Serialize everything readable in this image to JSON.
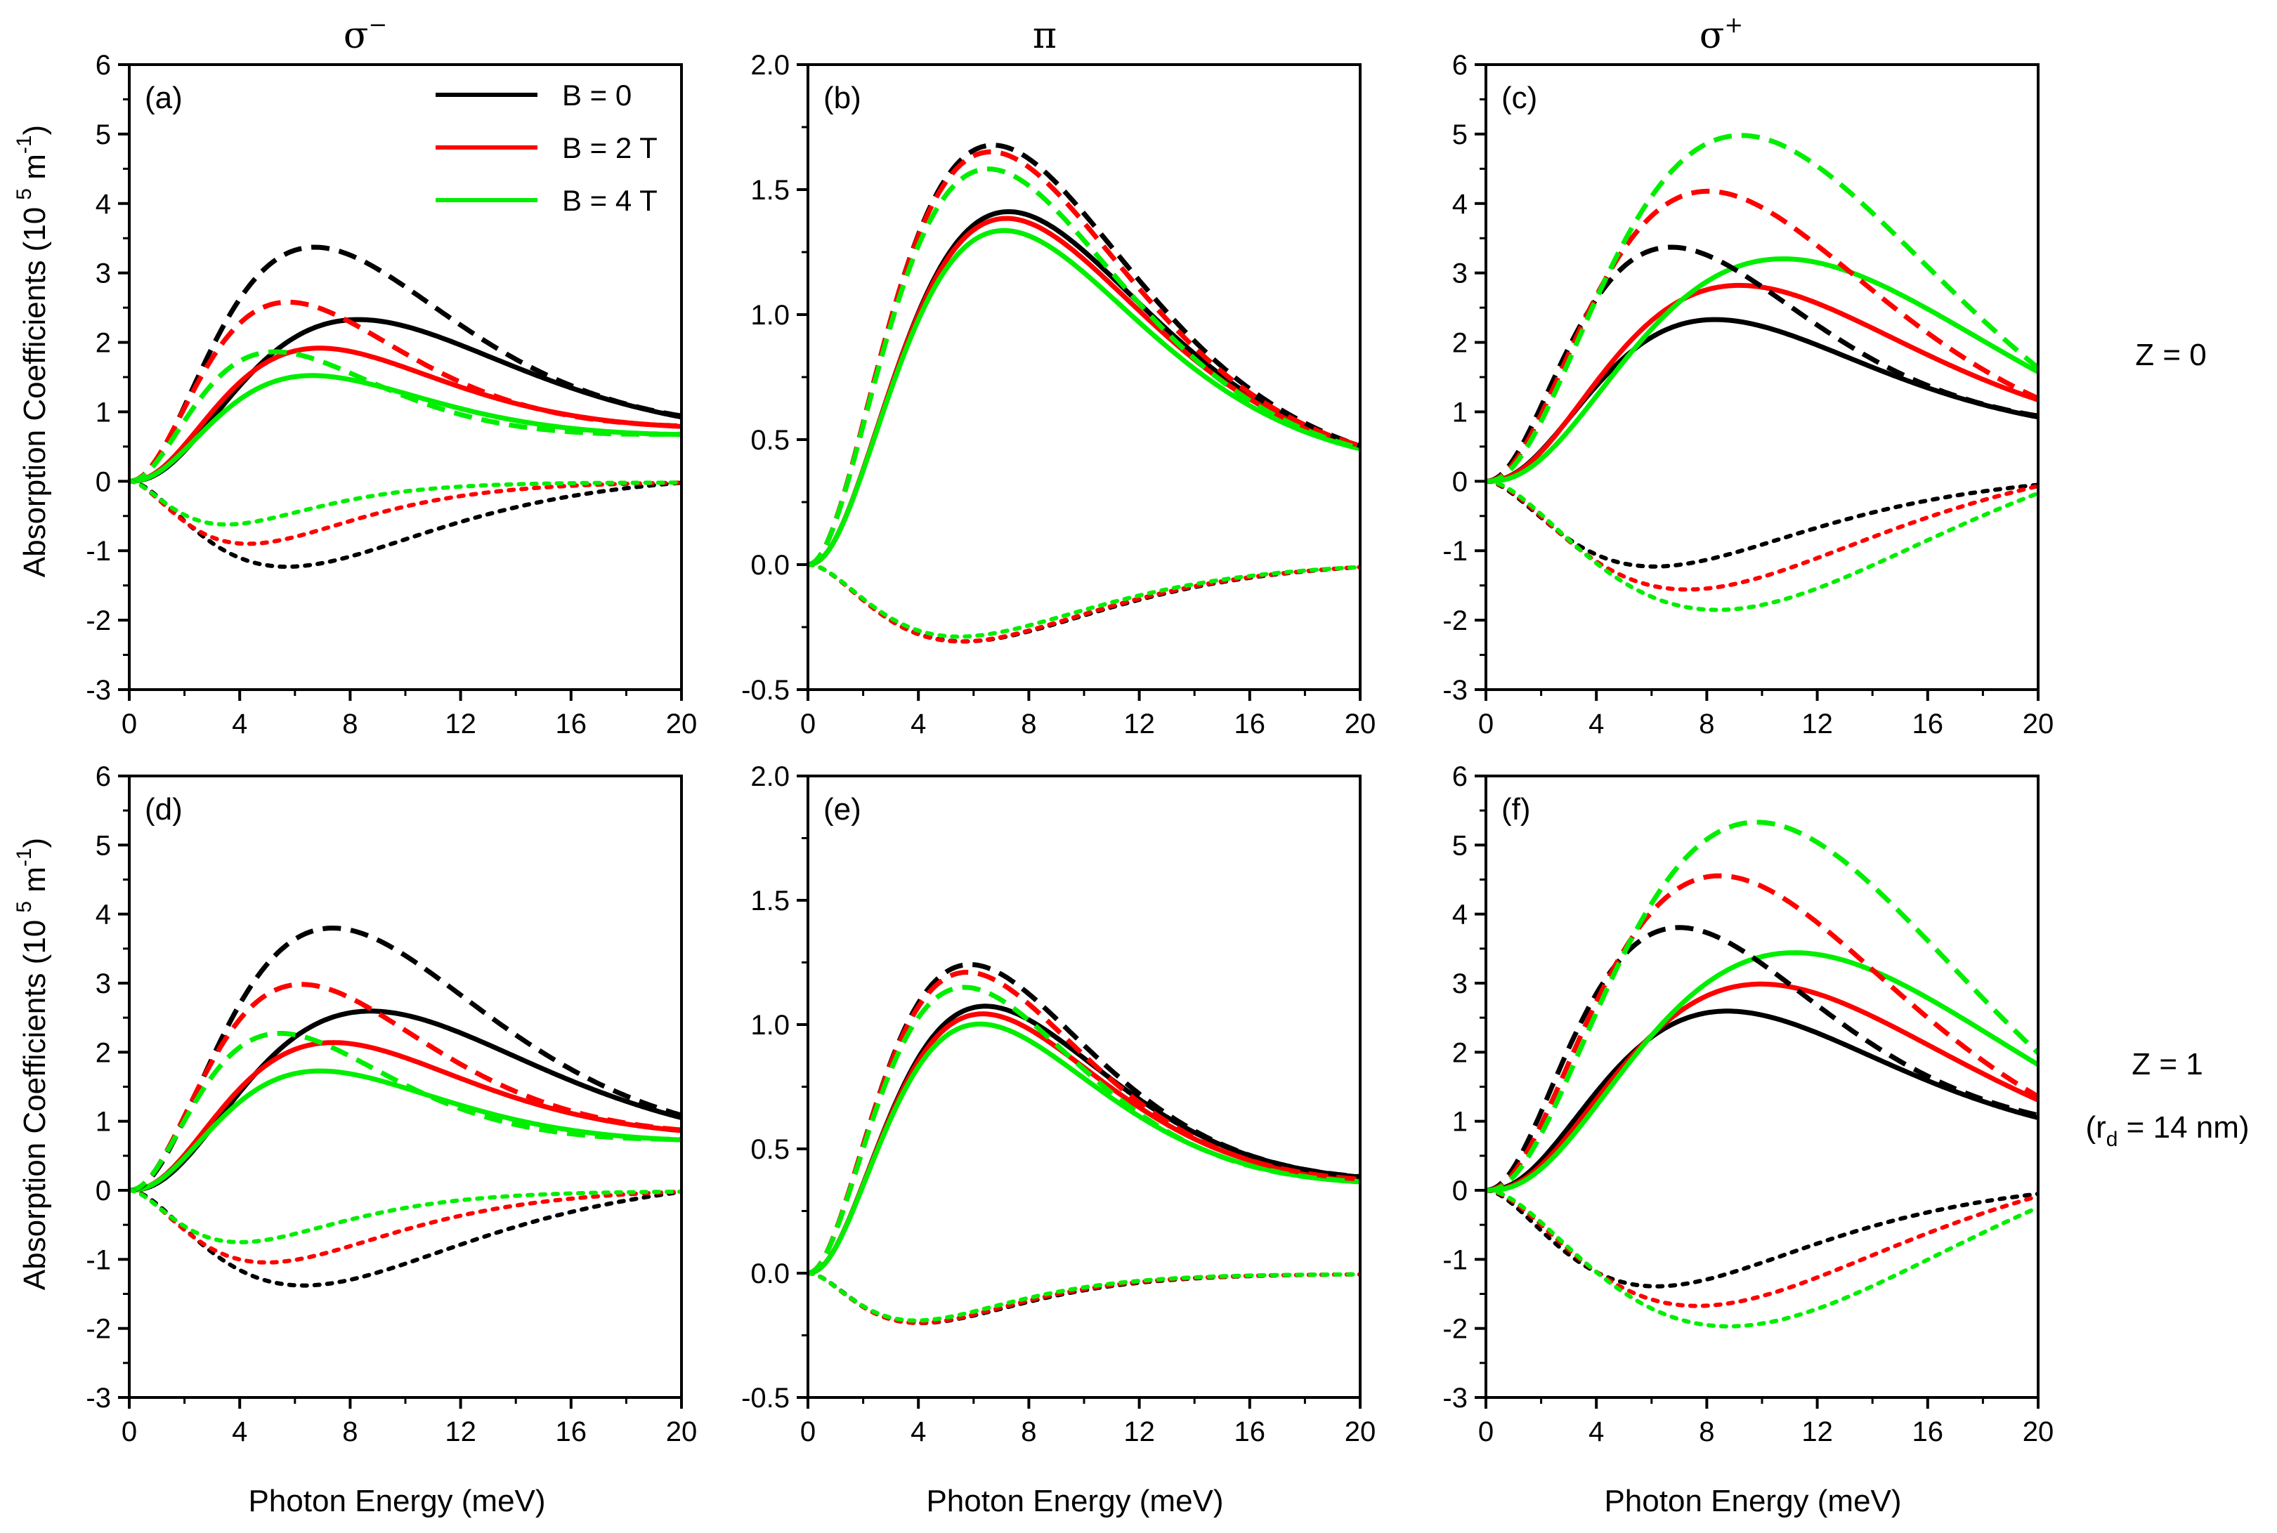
{
  "figure": {
    "column_titles": [
      "σ",
      "π",
      "σ"
    ],
    "column_title_sup": [
      "−",
      "",
      "+"
    ],
    "x_label": "Photon Energy (meV)",
    "y_label_main": "Absorption Coefficients (10",
    "y_label_sup1": "5",
    "y_label_unit": " m",
    "y_label_sup2": "-1",
    "y_label_end": ")",
    "row_labels": [
      {
        "lines": [
          "Z = 0"
        ]
      },
      {
        "lines": [
          "Z = 1",
          "(r",
          "d",
          " = 14 nm)"
        ]
      }
    ],
    "legend": [
      {
        "label": "B = 0",
        "color": "#000000"
      },
      {
        "label": "B = 2 T",
        "color": "#ff0000"
      },
      {
        "label": "B = 4 T",
        "color": "#00ee00"
      }
    ]
  },
  "chart_data": [
    {
      "type": "line",
      "panel": "(a)",
      "xlim": [
        0,
        20
      ],
      "ylim": [
        -3,
        6
      ],
      "xticks": [
        "0",
        "4",
        "8",
        "12",
        "16",
        "20"
      ],
      "yticks": [
        "-3",
        "-2",
        "-1",
        "0",
        "1",
        "2",
        "3",
        "4",
        "5",
        "6"
      ],
      "series": [
        {
          "name": "B = 0 solid",
          "color": "#000000",
          "style": "solid",
          "pe": 8.0,
          "peak": 2.22,
          "end": 0.95,
          "w": 2.6
        },
        {
          "name": "B = 2 T solid",
          "color": "#ff0000",
          "style": "solid",
          "pe": 6.5,
          "peak": 1.78,
          "end": 0.8,
          "w": 2.6
        },
        {
          "name": "B = 4 T solid",
          "color": "#00ee00",
          "style": "solid",
          "pe": 6.2,
          "peak": 1.4,
          "end": 0.68,
          "w": 2.6
        },
        {
          "name": "B = 0 dashed",
          "color": "#000000",
          "style": "dashed",
          "pe": 6.5,
          "peak": 3.25,
          "end": 0.95,
          "w": 2.3
        },
        {
          "name": "B = 2 T dashed",
          "color": "#ff0000",
          "style": "dashed",
          "pe": 5.5,
          "peak": 2.45,
          "end": 0.8,
          "w": 2.3
        },
        {
          "name": "B = 4 T dashed",
          "color": "#00ee00",
          "style": "dashed",
          "pe": 5.0,
          "peak": 1.75,
          "end": 0.68,
          "w": 2.3
        },
        {
          "name": "B = 0 dotted",
          "color": "#000000",
          "style": "dotted",
          "pe": 5.8,
          "peak": -1.25,
          "end": -0.02,
          "w": 1.9
        },
        {
          "name": "B = 2 T dotted",
          "color": "#ff0000",
          "style": "dotted",
          "pe": 4.3,
          "peak": -0.9,
          "end": -0.02,
          "w": 1.9
        },
        {
          "name": "B = 4 T dotted",
          "color": "#00ee00",
          "style": "dotted",
          "pe": 3.5,
          "peak": -0.62,
          "end": -0.02,
          "w": 1.9
        }
      ]
    },
    {
      "type": "line",
      "panel": "(b)",
      "xlim": [
        0,
        20
      ],
      "ylim": [
        -0.5,
        2.0
      ],
      "xticks": [
        "0",
        "4",
        "8",
        "12",
        "16",
        "20"
      ],
      "yticks": [
        "-0.5",
        "0.0",
        "0.5",
        "1.0",
        "1.5",
        "2.0"
      ],
      "series": [
        {
          "name": "B = 0 solid",
          "color": "#000000",
          "style": "solid",
          "pe": 7.0,
          "peak": 1.35,
          "end": 0.48,
          "w": 2.4
        },
        {
          "name": "B = 2 T solid",
          "color": "#ff0000",
          "style": "solid",
          "pe": 6.9,
          "peak": 1.32,
          "end": 0.48,
          "w": 2.4
        },
        {
          "name": "B = 4 T solid",
          "color": "#00ee00",
          "style": "solid",
          "pe": 6.8,
          "peak": 1.27,
          "end": 0.47,
          "w": 2.4
        },
        {
          "name": "B = 0 dashed",
          "color": "#000000",
          "style": "dashed",
          "pe": 6.5,
          "peak": 1.62,
          "end": 0.48,
          "w": 2.2
        },
        {
          "name": "B = 2 T dashed",
          "color": "#ff0000",
          "style": "dashed",
          "pe": 6.4,
          "peak": 1.59,
          "end": 0.48,
          "w": 2.2
        },
        {
          "name": "B = 4 T dashed",
          "color": "#00ee00",
          "style": "dashed",
          "pe": 6.3,
          "peak": 1.52,
          "end": 0.47,
          "w": 2.2
        },
        {
          "name": "B = 0 dotted",
          "color": "#000000",
          "style": "dotted",
          "pe": 5.7,
          "peak": -0.31,
          "end": -0.01,
          "w": 2.0
        },
        {
          "name": "B = 2 T dotted",
          "color": "#ff0000",
          "style": "dotted",
          "pe": 5.6,
          "peak": -0.31,
          "end": -0.01,
          "w": 2.0
        },
        {
          "name": "B = 4 T dotted",
          "color": "#00ee00",
          "style": "dotted",
          "pe": 5.5,
          "peak": -0.29,
          "end": -0.01,
          "w": 2.0
        }
      ]
    },
    {
      "type": "line",
      "panel": "(c)",
      "xlim": [
        0,
        20
      ],
      "ylim": [
        -3,
        6
      ],
      "xticks": [
        "0",
        "4",
        "8",
        "12",
        "16",
        "20"
      ],
      "yticks": [
        "-3",
        "-2",
        "-1",
        "0",
        "1",
        "2",
        "3",
        "4",
        "5",
        "6"
      ],
      "series": [
        {
          "name": "B = 0 solid",
          "color": "#000000",
          "style": "solid",
          "pe": 8.0,
          "peak": 2.22,
          "end": 0.95,
          "w": 2.6
        },
        {
          "name": "B = 2 T solid",
          "color": "#ff0000",
          "style": "solid",
          "pe": 9.0,
          "peak": 2.75,
          "end": 1.2,
          "w": 2.6
        },
        {
          "name": "B = 4 T solid",
          "color": "#00ee00",
          "style": "solid",
          "pe": 11.0,
          "peak": 3.3,
          "end": 1.5,
          "w": 2.6
        },
        {
          "name": "B = 0 dashed",
          "color": "#000000",
          "style": "dashed",
          "pe": 6.5,
          "peak": 3.25,
          "end": 0.95,
          "w": 2.3
        },
        {
          "name": "B = 2 T dashed",
          "color": "#ff0000",
          "style": "dashed",
          "pe": 8.0,
          "peak": 4.15,
          "end": 1.2,
          "w": 2.3
        },
        {
          "name": "B = 4 T dashed",
          "color": "#00ee00",
          "style": "dashed",
          "pe": 9.5,
          "peak": 5.15,
          "end": 1.55,
          "w": 2.3
        },
        {
          "name": "B = 0 dotted",
          "color": "#000000",
          "style": "dotted",
          "pe": 6.2,
          "peak": -1.25,
          "end": -0.05,
          "w": 1.9
        },
        {
          "name": "B = 2 T dotted",
          "color": "#ff0000",
          "style": "dotted",
          "pe": 7.7,
          "peak": -1.65,
          "end": -0.05,
          "w": 1.9
        },
        {
          "name": "B = 4 T dotted",
          "color": "#00ee00",
          "style": "dotted",
          "pe": 9.2,
          "peak": -2.05,
          "end": -0.08,
          "w": 1.9
        }
      ]
    },
    {
      "type": "line",
      "panel": "(d)",
      "xlim": [
        0,
        20
      ],
      "ylim": [
        -3,
        6
      ],
      "xticks": [
        "0",
        "4",
        "8",
        "12",
        "16",
        "20"
      ],
      "yticks": [
        "-3",
        "-2",
        "-1",
        "0",
        "1",
        "2",
        "3",
        "4",
        "5",
        "6"
      ],
      "series": [
        {
          "name": "B = 0 solid",
          "color": "#000000",
          "style": "solid",
          "pe": 8.5,
          "peak": 2.5,
          "end": 1.08,
          "w": 2.6
        },
        {
          "name": "B = 2 T solid",
          "color": "#ff0000",
          "style": "solid",
          "pe": 7.0,
          "peak": 2.0,
          "end": 0.88,
          "w": 2.6
        },
        {
          "name": "B = 4 T solid",
          "color": "#00ee00",
          "style": "solid",
          "pe": 6.5,
          "peak": 1.6,
          "end": 0.74,
          "w": 2.6
        },
        {
          "name": "B = 0 dashed",
          "color": "#000000",
          "style": "dashed",
          "pe": 7.2,
          "peak": 3.7,
          "end": 1.1,
          "w": 2.3
        },
        {
          "name": "B = 2 T dashed",
          "color": "#ff0000",
          "style": "dashed",
          "pe": 6.0,
          "peak": 2.85,
          "end": 0.88,
          "w": 2.3
        },
        {
          "name": "B = 4 T dashed",
          "color": "#00ee00",
          "style": "dashed",
          "pe": 5.2,
          "peak": 2.15,
          "end": 0.74,
          "w": 2.3
        },
        {
          "name": "B = 0 dotted",
          "color": "#000000",
          "style": "dotted",
          "pe": 6.5,
          "peak": -1.42,
          "end": -0.02,
          "w": 1.9
        },
        {
          "name": "B = 2 T dotted",
          "color": "#ff0000",
          "style": "dotted",
          "pe": 5.0,
          "peak": -1.05,
          "end": -0.02,
          "w": 1.9
        },
        {
          "name": "B = 4 T dotted",
          "color": "#00ee00",
          "style": "dotted",
          "pe": 4.0,
          "peak": -0.75,
          "end": -0.02,
          "w": 1.9
        }
      ]
    },
    {
      "type": "line",
      "panel": "(e)",
      "xlim": [
        0,
        20
      ],
      "ylim": [
        -0.5,
        2.0
      ],
      "xticks": [
        "0",
        "4",
        "8",
        "12",
        "16",
        "20"
      ],
      "yticks": [
        "-0.5",
        "0.0",
        "0.5",
        "1.0",
        "1.5",
        "2.0"
      ],
      "series": [
        {
          "name": "B = 0 solid",
          "color": "#000000",
          "style": "solid",
          "pe": 6.1,
          "peak": 1.01,
          "end": 0.39,
          "w": 2.4
        },
        {
          "name": "B = 2 T solid",
          "color": "#ff0000",
          "style": "solid",
          "pe": 6.0,
          "peak": 0.98,
          "end": 0.38,
          "w": 2.4
        },
        {
          "name": "B = 4 T solid",
          "color": "#00ee00",
          "style": "solid",
          "pe": 5.9,
          "peak": 0.94,
          "end": 0.37,
          "w": 2.4
        },
        {
          "name": "B = 0 dashed",
          "color": "#000000",
          "style": "dashed",
          "pe": 5.6,
          "peak": 1.18,
          "end": 0.39,
          "w": 2.2
        },
        {
          "name": "B = 2 T dashed",
          "color": "#ff0000",
          "style": "dashed",
          "pe": 5.5,
          "peak": 1.15,
          "end": 0.38,
          "w": 2.2
        },
        {
          "name": "B = 4 T dashed",
          "color": "#00ee00",
          "style": "dashed",
          "pe": 5.4,
          "peak": 1.09,
          "end": 0.37,
          "w": 2.2
        },
        {
          "name": "B = 0 dotted",
          "color": "#000000",
          "style": "dotted",
          "pe": 4.1,
          "peak": -0.2,
          "end": -0.005,
          "w": 2.0
        },
        {
          "name": "B = 2 T dotted",
          "color": "#ff0000",
          "style": "dotted",
          "pe": 4.0,
          "peak": -0.2,
          "end": -0.005,
          "w": 2.0
        },
        {
          "name": "B = 4 T dotted",
          "color": "#00ee00",
          "style": "dotted",
          "pe": 3.9,
          "peak": -0.19,
          "end": -0.005,
          "w": 2.0
        }
      ]
    },
    {
      "type": "line",
      "panel": "(f)",
      "xlim": [
        0,
        20
      ],
      "ylim": [
        -3,
        6
      ],
      "xticks": [
        "0",
        "4",
        "8",
        "12",
        "16",
        "20"
      ],
      "yticks": [
        "-3",
        "-2",
        "-1",
        "0",
        "1",
        "2",
        "3",
        "4",
        "5",
        "6"
      ],
      "series": [
        {
          "name": "B = 0 solid",
          "color": "#000000",
          "style": "solid",
          "pe": 8.5,
          "peak": 2.5,
          "end": 1.08,
          "w": 2.6
        },
        {
          "name": "B = 2 T solid",
          "color": "#ff0000",
          "style": "solid",
          "pe": 10.0,
          "peak": 3.0,
          "end": 1.3,
          "w": 2.6
        },
        {
          "name": "B = 4 T solid",
          "color": "#00ee00",
          "style": "solid",
          "pe": 11.5,
          "peak": 3.58,
          "end": 1.7,
          "w": 2.6
        },
        {
          "name": "B = 0 dashed",
          "color": "#000000",
          "style": "dashed",
          "pe": 6.8,
          "peak": 3.68,
          "end": 1.1,
          "w": 2.3
        },
        {
          "name": "B = 2 T dashed",
          "color": "#ff0000",
          "style": "dashed",
          "pe": 8.5,
          "peak": 4.58,
          "end": 1.35,
          "w": 2.3
        },
        {
          "name": "B = 4 T dashed",
          "color": "#00ee00",
          "style": "dashed",
          "pe": 10.2,
          "peak": 5.6,
          "end": 1.82,
          "w": 2.3
        },
        {
          "name": "B = 0 dotted",
          "color": "#000000",
          "style": "dotted",
          "pe": 6.3,
          "peak": -1.42,
          "end": -0.05,
          "w": 1.9
        },
        {
          "name": "B = 2 T dotted",
          "color": "#ff0000",
          "style": "dotted",
          "pe": 8.2,
          "peak": -1.8,
          "end": -0.05,
          "w": 1.9
        },
        {
          "name": "B = 4 T dotted",
          "color": "#00ee00",
          "style": "dotted",
          "pe": 9.8,
          "peak": -2.22,
          "end": -0.1,
          "w": 1.9
        }
      ]
    }
  ]
}
